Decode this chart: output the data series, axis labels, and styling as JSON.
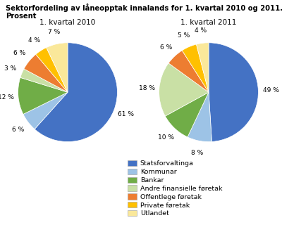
{
  "title_line1": "Sektorfordeling av låneopptak innalands for 1. kvartal 2010 og 2011.",
  "title_line2": "Prosent",
  "subtitle1": "1. kvartal 2010",
  "subtitle2": "1. kvartal 2011",
  "values_2010": [
    61,
    6,
    12,
    3,
    6,
    4,
    7
  ],
  "values_2011": [
    49,
    8,
    10,
    18,
    6,
    5,
    4
  ],
  "labels": [
    "Statsforvaltinga",
    "Kommunar",
    "Bankar",
    "Andre finansielle føretak",
    "Offentlege føretak",
    "Private føretak",
    "Utlandet"
  ],
  "colors": [
    "#4472C4",
    "#9DC3E6",
    "#70AD47",
    "#C9E0A5",
    "#ED7D31",
    "#FFC000",
    "#FAE89A"
  ],
  "background_color": "#ffffff",
  "label_radius_2010": [
    1.28,
    1.28,
    1.28,
    1.28,
    1.28,
    1.28,
    1.28
  ],
  "label_radius_2011": [
    1.28,
    1.28,
    1.28,
    1.28,
    1.28,
    1.28,
    1.28
  ]
}
